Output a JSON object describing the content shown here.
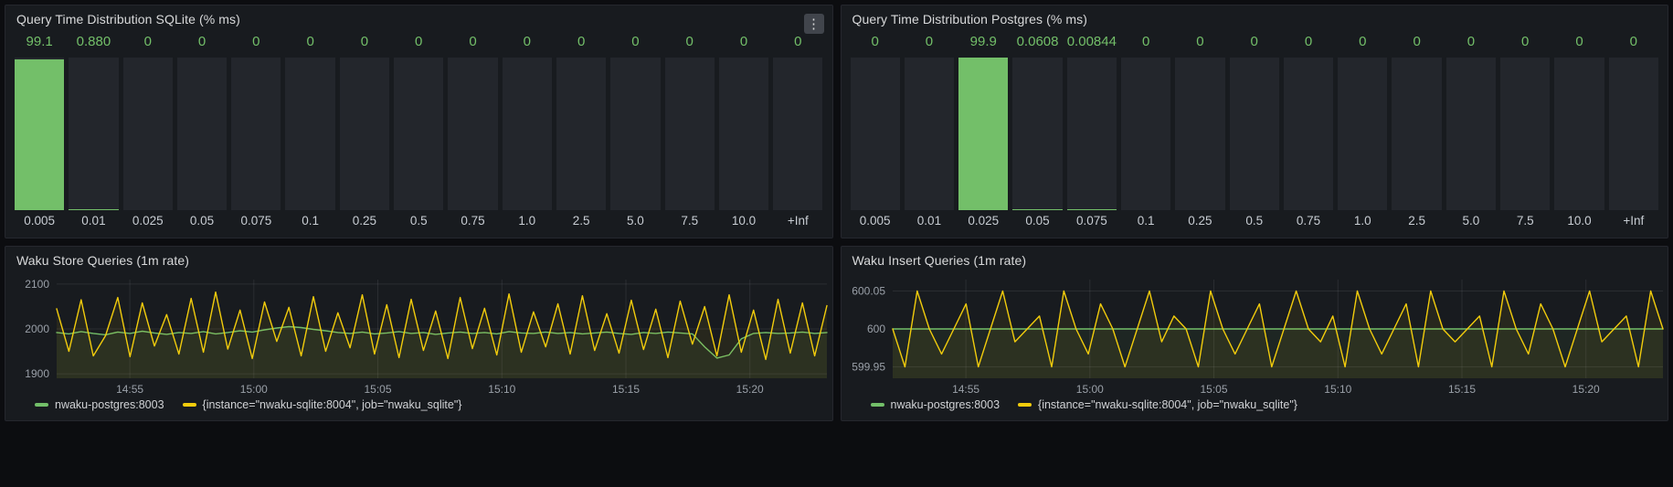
{
  "colors": {
    "green": "#73bf69",
    "yellow": "#f2cc0c",
    "grid": "rgba(204,204,220,0.10)",
    "axis_text": "#9aa0a8",
    "panel_bg": "#181b1f",
    "bar_track_bg": "#23262c"
  },
  "panel_menu_icon": "⋮",
  "chart_data": [
    {
      "type": "bar",
      "title": "Query Time Distribution SQLite (% ms)",
      "categories": [
        "0.005",
        "0.01",
        "0.025",
        "0.05",
        "0.075",
        "0.1",
        "0.25",
        "0.5",
        "0.75",
        "1.0",
        "2.5",
        "5.0",
        "7.5",
        "10.0",
        "+Inf"
      ],
      "values": [
        99.1,
        0.88,
        0,
        0,
        0,
        0,
        0,
        0,
        0,
        0,
        0,
        0,
        0,
        0,
        0
      ],
      "value_labels": [
        "99.1",
        "0.880",
        "0",
        "0",
        "0",
        "0",
        "0",
        "0",
        "0",
        "0",
        "0",
        "0",
        "0",
        "0",
        "0"
      ],
      "ylim": [
        0,
        100
      ],
      "color": "green"
    },
    {
      "type": "bar",
      "title": "Query Time Distribution Postgres (% ms)",
      "categories": [
        "0.005",
        "0.01",
        "0.025",
        "0.05",
        "0.075",
        "0.1",
        "0.25",
        "0.5",
        "0.75",
        "1.0",
        "2.5",
        "5.0",
        "7.5",
        "10.0",
        "+Inf"
      ],
      "values": [
        0,
        0,
        99.9,
        0.0608,
        0.00844,
        0,
        0,
        0,
        0,
        0,
        0,
        0,
        0,
        0,
        0
      ],
      "value_labels": [
        "0",
        "0",
        "99.9",
        "0.0608",
        "0.00844",
        "0",
        "0",
        "0",
        "0",
        "0",
        "0",
        "0",
        "0",
        "0",
        "0"
      ],
      "ylim": [
        0,
        100
      ],
      "color": "green"
    },
    {
      "type": "line",
      "title": "Waku Store Queries (1m rate)",
      "ylim": [
        1890,
        2110
      ],
      "yticks": [
        1900,
        2000,
        2100
      ],
      "ytick_labels": [
        "1900",
        "2000",
        "2100"
      ],
      "xticks": [
        "14:55",
        "15:00",
        "15:05",
        "15:10",
        "15:15",
        "15:20"
      ],
      "xtick_pos": [
        0.095,
        0.256,
        0.417,
        0.578,
        0.739,
        0.9
      ],
      "series": [
        {
          "name": "nwaku-postgres:8003",
          "color": "green",
          "values": [
            1992,
            1989,
            1994,
            1990,
            1987,
            1993,
            1990,
            1995,
            1991,
            1988,
            1992,
            1990,
            1994,
            1989,
            1992,
            1996,
            1993,
            1998,
            2002,
            2005,
            2003,
            1999,
            1996,
            1992,
            1990,
            1993,
            1989,
            1991,
            1994,
            1990,
            1992,
            1988,
            1991,
            1993,
            1990,
            1992,
            1989,
            1994,
            1991,
            1990,
            1993,
            1990,
            1992,
            1989,
            1991,
            1993,
            1990,
            1988,
            1992,
            1990,
            1993,
            1991,
            1989,
            1960,
            1935,
            1942,
            1978,
            1990,
            1992,
            1990,
            1991,
            1993,
            1990,
            1992
          ]
        },
        {
          "name": "{instance=\"nwaku-sqlite:8004\", job=\"nwaku_sqlite\"}",
          "color": "yellow",
          "values": [
            2045,
            1950,
            2065,
            1940,
            1985,
            2070,
            1938,
            2058,
            1962,
            2032,
            1944,
            2068,
            1948,
            2082,
            1955,
            2042,
            1934,
            2060,
            1972,
            2048,
            1940,
            2072,
            1950,
            2036,
            1958,
            2076,
            1944,
            2054,
            1936,
            2066,
            1952,
            2040,
            1934,
            2070,
            1956,
            2046,
            1942,
            2078,
            1948,
            2038,
            1960,
            2056,
            1944,
            2074,
            1952,
            2034,
            1946,
            2064,
            1954,
            2044,
            1936,
            2062,
            1966,
            2050,
            1940,
            2076,
            1948,
            2042,
            1932,
            2066,
            1946,
            2058,
            1940,
            2052
          ]
        }
      ],
      "legend": [
        {
          "label": "nwaku-postgres:8003",
          "color": "green"
        },
        {
          "label": "{instance=\"nwaku-sqlite:8004\", job=\"nwaku_sqlite\"}",
          "color": "yellow"
        }
      ]
    },
    {
      "type": "line",
      "title": "Waku Insert Queries (1m rate)",
      "ylim": [
        599.935,
        600.065
      ],
      "yticks": [
        599.95,
        600,
        600.05
      ],
      "ytick_labels": [
        "599.95",
        "600",
        "600.05"
      ],
      "xticks": [
        "14:55",
        "15:00",
        "15:05",
        "15:10",
        "15:15",
        "15:20"
      ],
      "xtick_pos": [
        0.095,
        0.256,
        0.417,
        0.578,
        0.739,
        0.9
      ],
      "series": [
        {
          "name": "nwaku-postgres:8003",
          "color": "green",
          "values": [
            600,
            600
          ]
        },
        {
          "name": "{instance=\"nwaku-sqlite:8004\", job=\"nwaku_sqlite\"}",
          "color": "yellow",
          "values": [
            600,
            599.95,
            600.05,
            600,
            599.967,
            600,
            600.033,
            599.95,
            600,
            600.05,
            599.983,
            600,
            600.017,
            599.95,
            600.05,
            600,
            599.967,
            600.033,
            600,
            599.95,
            600,
            600.05,
            599.983,
            600.017,
            600,
            599.95,
            600.05,
            600,
            599.967,
            600,
            600.033,
            599.95,
            600,
            600.05,
            600,
            599.983,
            600.017,
            599.95,
            600.05,
            600,
            599.967,
            600,
            600.033,
            599.95,
            600.05,
            600,
            599.983,
            600,
            600.017,
            599.95,
            600.05,
            600,
            599.967,
            600.033,
            600,
            599.95,
            600,
            600.05,
            599.983,
            600,
            600.017,
            599.95,
            600.05,
            600
          ]
        }
      ],
      "legend": [
        {
          "label": "nwaku-postgres:8003",
          "color": "green"
        },
        {
          "label": "{instance=\"nwaku-sqlite:8004\", job=\"nwaku_sqlite\"}",
          "color": "yellow"
        }
      ]
    }
  ]
}
